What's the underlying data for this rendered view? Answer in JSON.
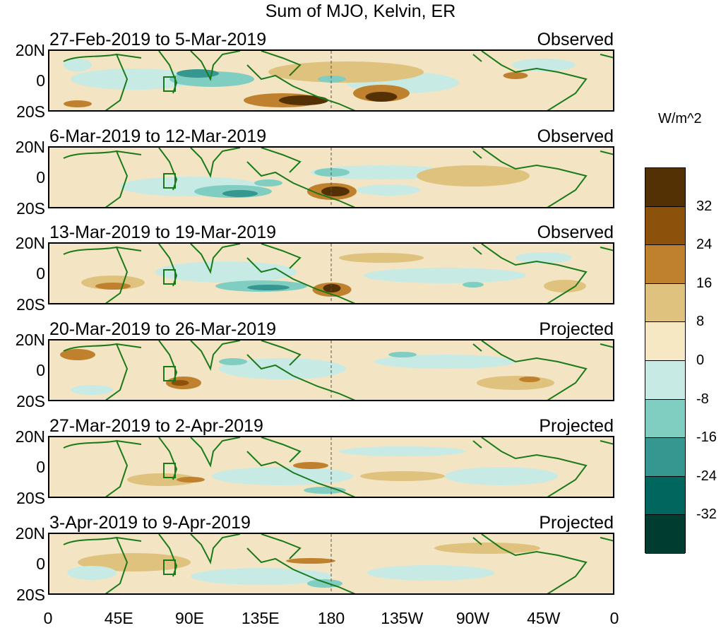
{
  "title": "Sum of MJO, Kelvin, ER",
  "units": "W/m^2",
  "y_ticks": [
    "20N",
    "0",
    "20S"
  ],
  "x_ticks": [
    "0",
    "45E",
    "90E",
    "135E",
    "180",
    "135W",
    "90W",
    "45W",
    "0"
  ],
  "panels": [
    {
      "date_range": "27-Feb-2019 to 5-Mar-2019",
      "status": "Observed"
    },
    {
      "date_range": "6-Mar-2019 to 12-Mar-2019",
      "status": "Observed"
    },
    {
      "date_range": "13-Mar-2019 to 19-Mar-2019",
      "status": "Observed"
    },
    {
      "date_range": "20-Mar-2019 to 26-Mar-2019",
      "status": "Projected"
    },
    {
      "date_range": "27-Mar-2019 to 2-Apr-2019",
      "status": "Projected"
    },
    {
      "date_range": "3-Apr-2019 to 9-Apr-2019",
      "status": "Projected"
    }
  ],
  "colorbar": {
    "labels": [
      "32",
      "24",
      "16",
      "8",
      "0",
      "-8",
      "-16",
      "-24",
      "-32"
    ],
    "colors": [
      "#543005",
      "#8c510a",
      "#bf812d",
      "#dfc27d",
      "#f6e8c3",
      "#c7eae5",
      "#80cdc1",
      "#35978f",
      "#01665e",
      "#003c30"
    ]
  }
}
